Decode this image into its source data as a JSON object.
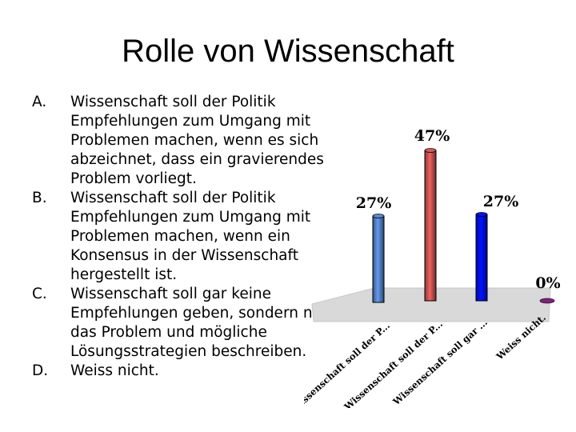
{
  "slide": {
    "title": "Rolle von Wissenschaft",
    "options": [
      {
        "letter": "A.",
        "text": "Wissenschaft soll der Politik Empfehlungen zum Umgang mit Problemen machen, wenn es sich abzeichnet, dass ein gravierendes Problem vorliegt."
      },
      {
        "letter": "B.",
        "text": "Wissenschaft soll der Politik Empfehlungen zum Umgang mit Problemen machen, wenn ein Konsensus in der Wissenschaft hergestellt ist."
      },
      {
        "letter": "C.",
        "text": "Wissenschaft soll gar keine Empfehlungen geben, sondern nur das Problem und mögliche Lösungsstrategien beschreiben."
      },
      {
        "letter": "D.",
        "text": "Weiss nicht."
      }
    ]
  },
  "chart_data": {
    "type": "bar",
    "categories": [
      "Wissenschaft soll der P...",
      "Wissenschaft soll der P...",
      "Wissenschaft soll gar ...",
      "Weiss nicht."
    ],
    "values": [
      27,
      47,
      27,
      0
    ],
    "value_labels": [
      "27%",
      "47%",
      "27%",
      "0%"
    ],
    "colors": [
      "#4f7dc0",
      "#c0504d",
      "#0010f0",
      "#7a2478"
    ],
    "ylim": [
      0,
      50
    ],
    "grid": false,
    "legend": "none"
  }
}
